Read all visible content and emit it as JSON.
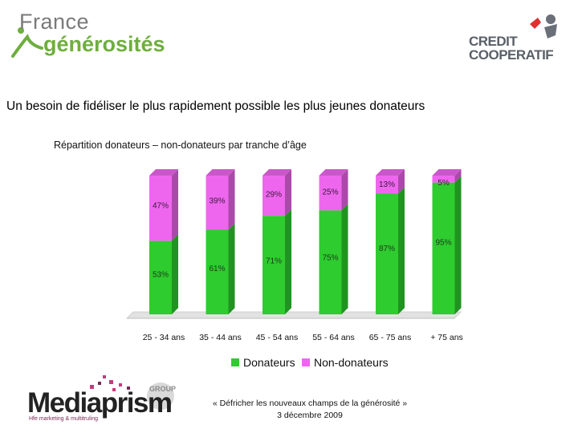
{
  "logos": {
    "france_generosites": {
      "line1": "France",
      "line2": "générosités"
    },
    "credit_cooperatif": {
      "line1": "CREDIT",
      "line2": "COOPERATIF"
    },
    "mediaprism": {
      "name": "Mediaprism",
      "group": "GROUP",
      "tagline": "Hfe marketing & multitruling"
    }
  },
  "heading": "Un besoin de fidéliser le plus rapidement possible les plus jeunes donateurs",
  "footer": {
    "line1": "« Défricher les nouveaux champs de la générosité »",
    "line2": "3 décembre 2009"
  },
  "chart_data": {
    "type": "bar",
    "stacked": true,
    "title": "Répartition donateurs – non-donateurs par tranche d’âge",
    "categories": [
      "25 - 34 ans",
      "35 - 44 ans",
      "45 - 54 ans",
      "55 - 64 ans",
      "65 - 75 ans",
      "+ 75 ans"
    ],
    "series": [
      {
        "name": "Donateurs",
        "values": [
          53,
          61,
          71,
          75,
          87,
          95
        ],
        "labels": [
          "53%",
          "61%",
          "71%",
          "75%",
          "87%",
          "95%"
        ],
        "color": "#2ecc2e"
      },
      {
        "name": "Non-donateurs",
        "values": [
          47,
          39,
          29,
          25,
          13,
          5
        ],
        "labels": [
          "47%",
          "39%",
          "29%",
          "25%",
          "13%",
          "5%"
        ],
        "color": "#ee66ee"
      }
    ],
    "ylim": [
      0,
      100
    ],
    "legend_position": "bottom",
    "grid": false,
    "style": "3d"
  }
}
